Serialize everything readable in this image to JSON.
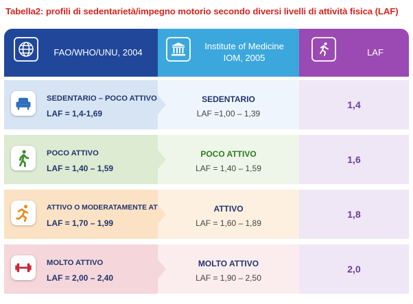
{
  "title": "Tabella2: profili di sedentarietà/impegno motorio secondo diversi  livelli di attività fisica (LAF)",
  "headers": {
    "col1": "FAO/WHO/UNU, 2004",
    "col2_line1": "Institute of Medicine",
    "col2_line2": "IOM, 2005",
    "col3": "LAF"
  },
  "header_icons": [
    "globe-icon",
    "institution-icon",
    "runner-icon"
  ],
  "rows": [
    {
      "fao_label": "SEDENTARIO – POCO ATTIVO",
      "fao_range": "LAF = 1,4-1,69",
      "iom_label": "SEDENTARIO",
      "iom_range": "LAF =1,00 – 1,39",
      "laf": "1,4",
      "icon": "armchair-icon",
      "color": "#2f6fbd"
    },
    {
      "fao_label": "POCO ATTIVO",
      "fao_range": "LAF = 1,40 – 1,59",
      "iom_label": "POCO  ATTIVO",
      "iom_range": "LAF = 1,40 – 1,59",
      "laf": "1,6",
      "icon": "walking-person-icon",
      "color": "#3e8e2e"
    },
    {
      "fao_label": "ATTIVO O MODERATAMENTE ATTIVO",
      "fao_range": "LAF = 1,70 – 1,99",
      "iom_label": "ATTIVO",
      "iom_range": "LAF = 1,60 – 1,89",
      "laf": "1,8",
      "icon": "running-person-icon",
      "color": "#ee8a1c"
    },
    {
      "fao_label": "MOLTO ATTIVO",
      "fao_range": "LAF = 2,00 – 2,40",
      "iom_label": "MOLTO ATTIVO",
      "iom_range": "LAF = 1,90 – 2,50",
      "laf": "2,0",
      "icon": "dumbbell-icon",
      "color": "#c62434"
    }
  ]
}
